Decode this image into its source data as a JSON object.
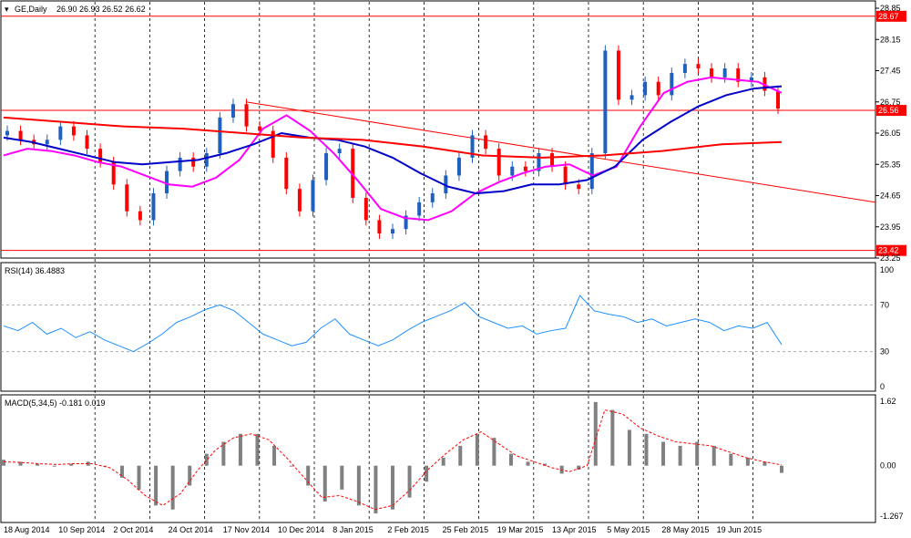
{
  "header": {
    "symbol": "GE,Daily",
    "ohlc": "26.90 26.93 26.52 26.62",
    "rsi_label": "RSI(14) 36.4883",
    "macd_label": "MACD(5,34,5) -0.181 0.019"
  },
  "colors": {
    "price_line": "#ff0000",
    "bull_candle": "#1f5fbf",
    "bear_candle": "#ff0000",
    "ma_fast": "#ff00ff",
    "ma_mid": "#0000c8",
    "ma_slow": "#ff0000",
    "rsi": "#1e90ff",
    "macd_hist": "#808080",
    "macd_signal": "#ff0000",
    "grid": "#000000"
  },
  "chart_data": [
    {
      "type": "candlestick",
      "panel": "price",
      "symbol": "GE",
      "timeframe": "Daily",
      "last_ohlc": {
        "open": 26.9,
        "high": 26.93,
        "low": 26.52,
        "close": 26.62
      },
      "ylim": [
        23.25,
        28.85
      ],
      "y_ticks": [
        "28.85",
        "28.15",
        "27.45",
        "26.75",
        "26.05",
        "25.35",
        "24.65",
        "23.95",
        "23.25"
      ],
      "price_levels": [
        {
          "value": 28.67,
          "label": "28.67"
        },
        {
          "value": 26.56,
          "label": "26.56"
        },
        {
          "value": 23.42,
          "label": "23.42"
        }
      ],
      "close_series": [
        26.1,
        25.9,
        25.8,
        25.9,
        26.2,
        26.0,
        25.7,
        25.4,
        24.9,
        24.3,
        24.1,
        24.7,
        25.2,
        25.5,
        25.3,
        25.6,
        26.4,
        26.7,
        26.2,
        26.1,
        25.5,
        24.8,
        24.3,
        25.0,
        25.6,
        25.7,
        24.6,
        24.1,
        23.8,
        23.9,
        24.2,
        24.5,
        24.7,
        25.1,
        25.5,
        26.0,
        25.7,
        25.1,
        25.3,
        25.2,
        25.6,
        25.3,
        24.9,
        24.8,
        25.6,
        27.9,
        26.8,
        26.9,
        27.2,
        26.9,
        27.4,
        27.6,
        27.5,
        27.3,
        27.5,
        27.2,
        27.3,
        27.0,
        26.6
      ],
      "trend_line": [
        26.75,
        24.5
      ],
      "moving_averages": [
        {
          "name": "fast",
          "values": [
            25.55,
            25.7,
            25.65,
            25.55,
            25.4,
            25.3,
            25.1,
            24.9,
            24.85,
            25.05,
            25.45,
            26.15,
            26.45,
            26.1,
            25.6,
            25.0,
            24.35,
            24.15,
            24.1,
            24.3,
            24.7,
            24.95,
            25.15,
            25.3,
            25.35,
            25.1,
            25.3,
            26.2,
            26.95,
            27.2,
            27.3,
            27.25,
            27.2,
            26.95
          ]
        },
        {
          "name": "mid",
          "values": [
            25.95,
            25.85,
            25.7,
            25.55,
            25.4,
            25.35,
            25.4,
            25.45,
            25.6,
            25.8,
            26.05,
            25.95,
            25.9,
            25.75,
            25.5,
            25.15,
            24.85,
            24.7,
            24.75,
            24.9,
            24.9,
            25.0,
            25.3,
            25.9,
            26.3,
            26.65,
            26.9,
            27.05,
            27.1
          ]
        },
        {
          "name": "slow",
          "values": [
            26.4,
            26.3,
            26.2,
            26.15,
            26.05,
            25.95,
            25.9,
            25.75,
            25.55,
            25.5,
            25.55,
            25.65,
            25.8,
            25.85
          ]
        }
      ]
    },
    {
      "type": "line",
      "panel": "rsi",
      "name": "RSI(14)",
      "last_value": 36.4883,
      "ylim": [
        0,
        100
      ],
      "y_ticks": [
        "100",
        "70",
        "30",
        "0"
      ],
      "levels": [
        70,
        30
      ],
      "values": [
        52,
        48,
        55,
        45,
        50,
        42,
        47,
        40,
        35,
        30,
        37,
        45,
        55,
        60,
        66,
        70,
        65,
        55,
        45,
        40,
        35,
        38,
        50,
        58,
        45,
        40,
        35,
        40,
        48,
        55,
        60,
        65,
        72,
        60,
        55,
        50,
        52,
        45,
        48,
        50,
        78,
        65,
        62,
        60,
        55,
        58,
        52,
        55,
        58,
        55,
        48,
        52,
        50,
        55,
        36
      ]
    },
    {
      "type": "bar+line",
      "panel": "macd",
      "name": "MACD(5,34,5)",
      "last_values": {
        "macd": -0.181,
        "signal": 0.019
      },
      "ylim": [
        -1.267,
        1.62
      ],
      "y_ticks": [
        "1.62",
        "0.00",
        "-1.267"
      ],
      "histogram": [
        0.15,
        0.1,
        0.05,
        0.0,
        0.05,
        0.1,
        0.0,
        -0.3,
        -0.6,
        -1.0,
        -1.1,
        -0.5,
        0.3,
        0.6,
        0.8,
        0.8,
        0.5,
        0.0,
        -0.5,
        -0.9,
        -0.6,
        -1.0,
        -1.2,
        -1.1,
        -0.8,
        -0.4,
        0.2,
        0.5,
        0.8,
        0.7,
        0.3,
        0.1,
        0.05,
        -0.2,
        -0.1,
        1.6,
        1.4,
        0.9,
        0.8,
        0.6,
        0.5,
        0.6,
        0.5,
        0.3,
        0.2,
        0.1,
        -0.18
      ],
      "signal": [
        0.1,
        0.08,
        0.05,
        0.03,
        0.05,
        0.05,
        -0.05,
        -0.35,
        -0.75,
        -1.0,
        -0.7,
        -0.1,
        0.4,
        0.7,
        0.8,
        0.65,
        0.2,
        -0.3,
        -0.8,
        -0.75,
        -0.9,
        -1.1,
        -1.0,
        -0.6,
        -0.1,
        0.3,
        0.65,
        0.85,
        0.55,
        0.25,
        0.1,
        -0.05,
        -0.15,
        0.0,
        1.4,
        1.3,
        0.95,
        0.75,
        0.6,
        0.55,
        0.5,
        0.35,
        0.2,
        0.1,
        0.02
      ]
    }
  ],
  "x_axis": {
    "labels": [
      "18 Aug 2014",
      "10 Sep 2014",
      "2 Oct 2014",
      "24 Oct 2014",
      "17 Nov 2014",
      "10 Dec 2014",
      "8 Jan 2015",
      "2 Feb 2015",
      "25 Feb 2015",
      "19 Mar 2015",
      "13 Apr 2015",
      "5 May 2015",
      "28 May 2015",
      "19 Jun 2015"
    ]
  }
}
